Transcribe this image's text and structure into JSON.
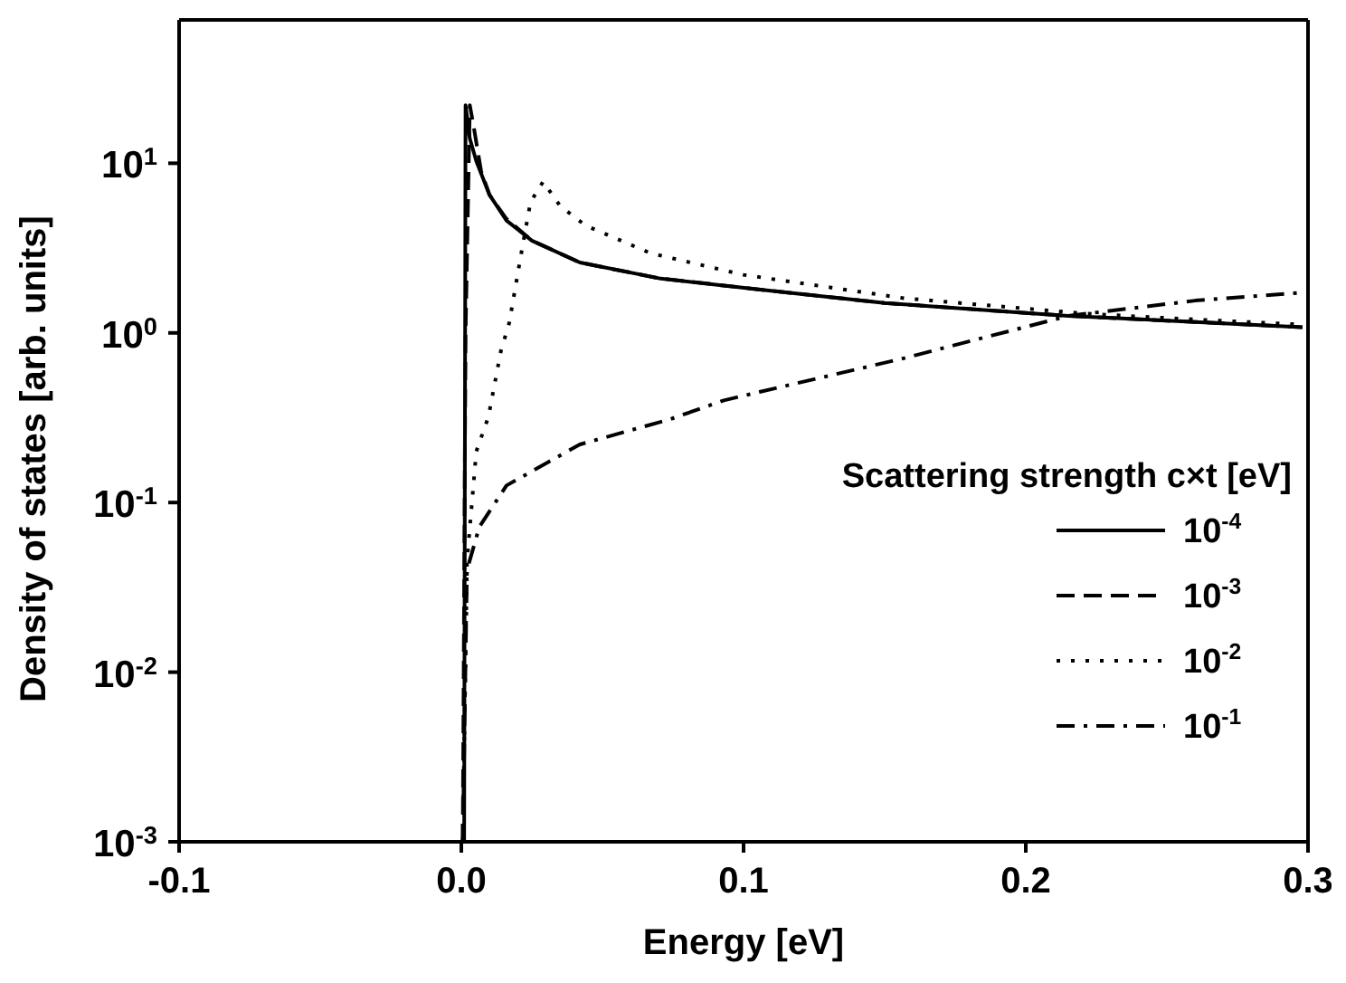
{
  "chart_data": {
    "type": "line",
    "xlabel": "Energy [eV]",
    "ylabel": "Density of states [arb. units]",
    "legend_title": "Scattering strength c×t [eV]",
    "xlim": [
      -0.1,
      0.3
    ],
    "xticks": [
      -0.1,
      {
        "value": 0,
        "label": "0.0"
      },
      0.1,
      0.2,
      0.3
    ],
    "ylim": [
      0.001,
      70
    ],
    "log": "y",
    "yticks": [
      {
        "value": 0.001,
        "label": "10$^{-3}$"
      },
      {
        "value": 0.01,
        "label": "10$^{-2}$"
      },
      {
        "value": 0.1,
        "label": "10$^{-1}$"
      },
      {
        "value": 1,
        "label": "10$^{0}$"
      },
      {
        "value": 10,
        "label": "10$^{1}$"
      }
    ],
    "grid": false,
    "legend": "right",
    "marker": "none",
    "series": [
      {
        "name": "10$^{-4}$",
        "color": "#000000",
        "line_style": "solid",
        "x": [
          0.001,
          0.0015,
          0.003,
          0.0053,
          0.01,
          0.016,
          0.025,
          0.042,
          0.07,
          0.093,
          0.106,
          0.15,
          0.215,
          0.26,
          0.298
        ],
        "values": [
          0.001,
          22,
          14,
          10.3,
          6.5,
          4.6,
          3.5,
          2.6,
          2.1,
          1.9,
          1.8,
          1.5,
          1.26,
          1.16,
          1.08
        ]
      },
      {
        "name": "10$^{-3}$",
        "color": "#000000",
        "line_style": "dashed",
        "x": [
          0.0005,
          0.0015,
          0.003,
          0.0045,
          0.007,
          0.01,
          0.016,
          0.025,
          0.042,
          0.07,
          0.106,
          0.15,
          0.215,
          0.26,
          0.298
        ],
        "values": [
          0.001,
          1,
          22,
          16,
          9,
          6.5,
          4.7,
          3.5,
          2.6,
          2.1,
          1.8,
          1.5,
          1.26,
          1.16,
          1.08
        ]
      },
      {
        "name": "10$^{-2}$",
        "color": "#000000",
        "line_style": "dotted",
        "x": [
          0.0005,
          0.002,
          0.0053,
          0.0096,
          0.014,
          0.017,
          0.021,
          0.0245,
          0.029,
          0.035,
          0.044,
          0.067,
          0.1,
          0.157,
          0.221,
          0.26,
          0.298
        ],
        "values": [
          0.001,
          0.045,
          0.2,
          0.32,
          0.78,
          1.15,
          2.8,
          5.9,
          7.8,
          5.6,
          4.3,
          2.95,
          2.2,
          1.6,
          1.3,
          1.2,
          1.12
        ]
      },
      {
        "name": "10$^{-1}$",
        "color": "#000000",
        "line_style": "dashdot",
        "x": [
          0.0005,
          0.002,
          0.0064,
          0.016,
          0.042,
          0.074,
          0.093,
          0.106,
          0.157,
          0.215,
          0.26,
          0.298
        ],
        "values": [
          0.001,
          0.04,
          0.072,
          0.126,
          0.22,
          0.31,
          0.4,
          0.45,
          0.71,
          1.26,
          1.55,
          1.73
        ]
      }
    ]
  }
}
